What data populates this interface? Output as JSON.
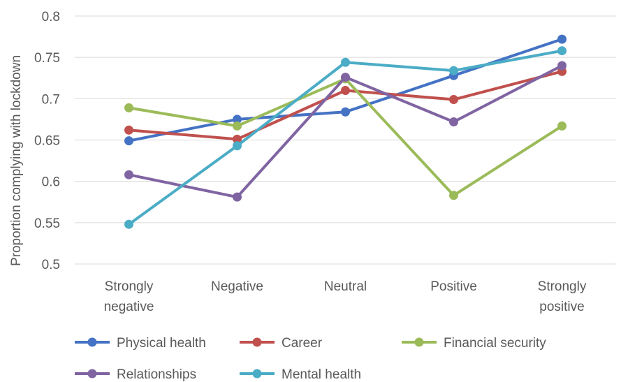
{
  "chart_data": {
    "type": "line",
    "title": "",
    "xlabel": "",
    "ylabel": "Proportion complying with lockdown",
    "ylim": [
      0.5,
      0.8
    ],
    "yticks": [
      "0.5",
      "0.55",
      "0.6",
      "0.65",
      "0.7",
      "0.75",
      "0.8"
    ],
    "grid": true,
    "legend_position": "bottom",
    "categories": [
      [
        "Strongly",
        "negative"
      ],
      [
        "Negative"
      ],
      [
        "Neutral"
      ],
      [
        "Positive"
      ],
      [
        "Strongly",
        "positive"
      ]
    ],
    "series": [
      {
        "name": "Physical health",
        "color": "#4472C4",
        "values": [
          0.649,
          0.675,
          0.684,
          0.728,
          0.772
        ]
      },
      {
        "name": "Career",
        "color": "#C0504D",
        "values": [
          0.662,
          0.651,
          0.71,
          0.699,
          0.733
        ]
      },
      {
        "name": "Financial security",
        "color": "#9BBB59",
        "values": [
          0.689,
          0.667,
          0.724,
          0.583,
          0.667
        ]
      },
      {
        "name": "Relationships",
        "color": "#8064A2",
        "values": [
          0.608,
          0.581,
          0.726,
          0.672,
          0.74
        ]
      },
      {
        "name": "Mental health",
        "color": "#4BACC6",
        "values": [
          0.548,
          0.643,
          0.744,
          0.734,
          0.758
        ]
      }
    ]
  }
}
